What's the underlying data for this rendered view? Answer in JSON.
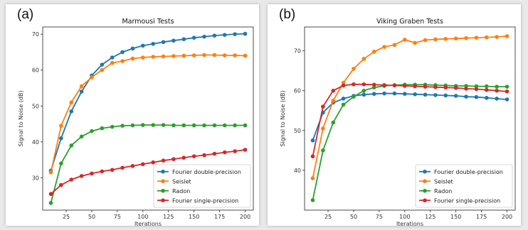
{
  "panels": [
    {
      "letter": "(a)"
    },
    {
      "letter": "(b)"
    }
  ],
  "chart_data": [
    {
      "type": "line",
      "title": "Marmousi Tests",
      "xlabel": "Iterations",
      "ylabel": "Signal to Noise (dB)",
      "xlim": [
        2,
        208
      ],
      "ylim": [
        21,
        72
      ],
      "xticks": [
        25,
        50,
        75,
        100,
        125,
        150,
        175,
        200
      ],
      "yticks": [
        30,
        40,
        50,
        60,
        70
      ],
      "legend_position": "lower-right",
      "x": [
        10,
        20,
        30,
        40,
        50,
        60,
        70,
        80,
        90,
        100,
        110,
        120,
        130,
        140,
        150,
        160,
        170,
        180,
        190,
        200
      ],
      "series": [
        {
          "name": "Fourier double-precision",
          "color": "#1f77b4",
          "values": [
            32,
            41,
            48.5,
            54,
            58.5,
            61.5,
            63.5,
            65,
            66,
            66.8,
            67.3,
            67.8,
            68.2,
            68.6,
            69,
            69.3,
            69.6,
            69.8,
            70,
            70.1
          ]
        },
        {
          "name": "Seislet",
          "color": "#ff7f0e",
          "values": [
            31.5,
            44.5,
            51,
            55.5,
            58,
            60,
            62,
            62.5,
            63.2,
            63.5,
            63.7,
            63.8,
            63.9,
            64,
            64.1,
            64.2,
            64.2,
            64.1,
            64.1,
            64
          ]
        },
        {
          "name": "Radon",
          "color": "#2ca02c",
          "values": [
            23,
            34,
            39,
            41.5,
            43,
            43.8,
            44.2,
            44.5,
            44.6,
            44.7,
            44.7,
            44.7,
            44.6,
            44.6,
            44.6,
            44.6,
            44.6,
            44.6,
            44.6,
            44.6
          ]
        },
        {
          "name": "Fourier single-precision",
          "color": "#d62728",
          "values": [
            25.5,
            28,
            29.5,
            30.5,
            31.2,
            31.8,
            32.2,
            32.8,
            33.3,
            33.8,
            34.3,
            34.8,
            35.2,
            35.6,
            36,
            36.3,
            36.7,
            37.1,
            37.4,
            37.8
          ]
        }
      ]
    },
    {
      "type": "line",
      "title": "Viking Graben Tests",
      "xlabel": "Iterations",
      "ylabel": "Signal to Noise (dB)",
      "xlim": [
        2,
        208
      ],
      "ylim": [
        30,
        76
      ],
      "xticks": [
        25,
        50,
        75,
        100,
        125,
        150,
        175,
        200
      ],
      "yticks": [
        40,
        50,
        60,
        70
      ],
      "legend_position": "lower-right",
      "x": [
        10,
        20,
        30,
        40,
        50,
        60,
        70,
        80,
        90,
        100,
        110,
        120,
        130,
        140,
        150,
        160,
        170,
        180,
        190,
        200
      ],
      "series": [
        {
          "name": "Fourier double-precision",
          "color": "#1f77b4",
          "values": [
            47.5,
            54.5,
            57,
            58,
            58.7,
            59,
            59.2,
            59.3,
            59.3,
            59.2,
            59.1,
            59,
            58.9,
            58.8,
            58.7,
            58.5,
            58.4,
            58.2,
            58,
            57.8
          ]
        },
        {
          "name": "Seislet",
          "color": "#ff7f0e",
          "values": [
            38,
            50.5,
            57.5,
            62,
            65.5,
            68,
            69.8,
            71,
            71.5,
            72.8,
            72,
            72.7,
            72.9,
            73,
            73.1,
            73.2,
            73.3,
            73.4,
            73.5,
            73.7
          ]
        },
        {
          "name": "Radon",
          "color": "#2ca02c",
          "values": [
            32.5,
            45,
            52,
            56.5,
            58.5,
            60,
            60.8,
            61.2,
            61.4,
            61.5,
            61.5,
            61.5,
            61.4,
            61.3,
            61.2,
            61.2,
            61.1,
            61.1,
            61,
            61
          ]
        },
        {
          "name": "Fourier single-precision",
          "color": "#d62728",
          "values": [
            43.5,
            56,
            60,
            61.3,
            61.6,
            61.6,
            61.5,
            61.4,
            61.3,
            61.2,
            61.1,
            61,
            60.9,
            60.8,
            60.7,
            60.5,
            60.4,
            60.2,
            60,
            59.8
          ]
        }
      ]
    }
  ]
}
